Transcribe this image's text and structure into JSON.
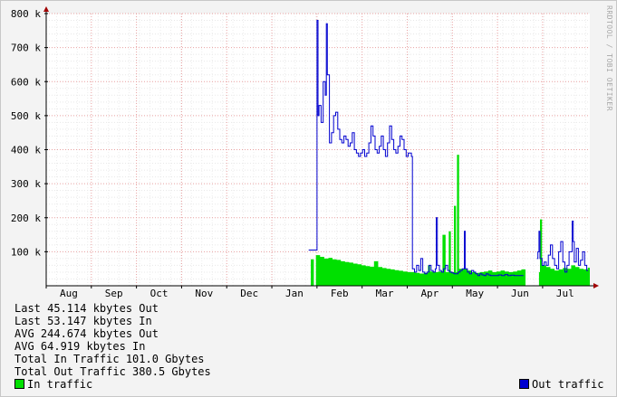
{
  "watermark": "RRDTOOL / TOBI OETIKER",
  "stats": [
    "Last 45.114 kbytes Out",
    "Last 53.147 kbytes In",
    "AVG 244.674 kbytes Out",
    "AVG 64.919 kbytes In",
    "Total In Traffic 101.0 Gbytes",
    "Total Out Traffic 380.5 Gbytes"
  ],
  "legend": {
    "in_label": "In traffic",
    "out_label": "Out traffic",
    "in_color": "#00e000",
    "out_color": "#0000d0"
  },
  "chart_data": {
    "type": "area",
    "x_unit": "week",
    "x_tick_labels": [
      "Aug",
      "Sep",
      "Oct",
      "Nov",
      "Dec",
      "Jan",
      "Feb",
      "Mar",
      "Apr",
      "May",
      "Jun",
      "Jul"
    ],
    "y_tick_labels": [
      "100 k",
      "200 k",
      "300 k",
      "400 k",
      "500 k",
      "600 k",
      "700 k",
      "800 k"
    ],
    "ylim": [
      0,
      800000
    ],
    "grid": true,
    "legend_position": "bottom",
    "series": [
      {
        "name": "In traffic",
        "color": "#00e000",
        "style": "area",
        "points": [
          [
            25.5,
            78000
          ],
          [
            25.8,
            0
          ],
          [
            26.0,
            90000
          ],
          [
            26.4,
            85000
          ],
          [
            26.8,
            80000
          ],
          [
            27.2,
            82000
          ],
          [
            27.6,
            78000
          ],
          [
            28.0,
            76000
          ],
          [
            28.4,
            72000
          ],
          [
            28.8,
            70000
          ],
          [
            29.2,
            68000
          ],
          [
            29.6,
            65000
          ],
          [
            30.0,
            63000
          ],
          [
            30.4,
            60000
          ],
          [
            30.8,
            58000
          ],
          [
            31.2,
            56000
          ],
          [
            31.6,
            72000
          ],
          [
            32.0,
            55000
          ],
          [
            32.4,
            52000
          ],
          [
            32.8,
            50000
          ],
          [
            33.2,
            48000
          ],
          [
            33.6,
            46000
          ],
          [
            34.0,
            44000
          ],
          [
            34.4,
            42000
          ],
          [
            34.8,
            40000
          ],
          [
            35.2,
            40000
          ],
          [
            35.6,
            38000
          ],
          [
            36.0,
            36000
          ],
          [
            36.4,
            38000
          ],
          [
            36.8,
            60000
          ],
          [
            37.0,
            42000
          ],
          [
            37.4,
            40000
          ],
          [
            37.8,
            42000
          ],
          [
            38.2,
            150000
          ],
          [
            38.5,
            40000
          ],
          [
            38.8,
            160000
          ],
          [
            39.0,
            40000
          ],
          [
            39.3,
            235000
          ],
          [
            39.5,
            40000
          ],
          [
            39.6,
            385000
          ],
          [
            39.8,
            50000
          ],
          [
            40.2,
            50000
          ],
          [
            40.6,
            45000
          ],
          [
            41.0,
            40000
          ],
          [
            41.4,
            38000
          ],
          [
            41.8,
            40000
          ],
          [
            42.2,
            42000
          ],
          [
            42.6,
            45000
          ],
          [
            43.0,
            40000
          ],
          [
            43.4,
            42000
          ],
          [
            43.8,
            45000
          ],
          [
            44.2,
            42000
          ],
          [
            44.6,
            40000
          ],
          [
            45.0,
            42000
          ],
          [
            45.4,
            45000
          ],
          [
            45.8,
            48000
          ],
          [
            46.2,
            0
          ],
          [
            47.2,
            0
          ],
          [
            47.5,
            40000
          ],
          [
            47.6,
            195000
          ],
          [
            47.8,
            60000
          ],
          [
            48.2,
            55000
          ],
          [
            48.6,
            50000
          ],
          [
            49.0,
            45000
          ],
          [
            49.4,
            48000
          ],
          [
            49.8,
            52000
          ],
          [
            50.2,
            50000
          ],
          [
            50.6,
            60000
          ],
          [
            51.0,
            55000
          ],
          [
            51.4,
            50000
          ],
          [
            51.8,
            48000
          ],
          [
            52.2,
            53147
          ]
        ]
      },
      {
        "name": "Out traffic",
        "color": "#0000d0",
        "style": "line",
        "points": [
          [
            25.3,
            105000
          ],
          [
            25.5,
            105000
          ],
          [
            26.1,
            780000
          ],
          [
            26.2,
            500000
          ],
          [
            26.3,
            530000
          ],
          [
            26.5,
            480000
          ],
          [
            26.7,
            600000
          ],
          [
            26.9,
            560000
          ],
          [
            27.0,
            770000
          ],
          [
            27.1,
            620000
          ],
          [
            27.3,
            420000
          ],
          [
            27.5,
            450000
          ],
          [
            27.7,
            500000
          ],
          [
            27.9,
            510000
          ],
          [
            28.1,
            460000
          ],
          [
            28.3,
            430000
          ],
          [
            28.5,
            420000
          ],
          [
            28.7,
            440000
          ],
          [
            28.9,
            430000
          ],
          [
            29.1,
            410000
          ],
          [
            29.3,
            420000
          ],
          [
            29.5,
            450000
          ],
          [
            29.7,
            400000
          ],
          [
            29.9,
            390000
          ],
          [
            30.1,
            380000
          ],
          [
            30.3,
            390000
          ],
          [
            30.5,
            400000
          ],
          [
            30.7,
            380000
          ],
          [
            30.9,
            390000
          ],
          [
            31.1,
            420000
          ],
          [
            31.3,
            470000
          ],
          [
            31.5,
            440000
          ],
          [
            31.7,
            400000
          ],
          [
            31.9,
            390000
          ],
          [
            32.1,
            410000
          ],
          [
            32.3,
            440000
          ],
          [
            32.5,
            400000
          ],
          [
            32.7,
            380000
          ],
          [
            32.9,
            420000
          ],
          [
            33.1,
            470000
          ],
          [
            33.3,
            430000
          ],
          [
            33.5,
            400000
          ],
          [
            33.7,
            390000
          ],
          [
            33.9,
            410000
          ],
          [
            34.1,
            440000
          ],
          [
            34.3,
            430000
          ],
          [
            34.5,
            400000
          ],
          [
            34.7,
            380000
          ],
          [
            34.9,
            390000
          ],
          [
            35.2,
            380000
          ],
          [
            35.3,
            50000
          ],
          [
            35.5,
            40000
          ],
          [
            35.7,
            60000
          ],
          [
            35.9,
            45000
          ],
          [
            36.1,
            80000
          ],
          [
            36.3,
            40000
          ],
          [
            36.5,
            35000
          ],
          [
            36.7,
            40000
          ],
          [
            36.9,
            60000
          ],
          [
            37.1,
            45000
          ],
          [
            37.3,
            40000
          ],
          [
            37.5,
            50000
          ],
          [
            37.6,
            200000
          ],
          [
            37.7,
            60000
          ],
          [
            37.9,
            45000
          ],
          [
            38.1,
            40000
          ],
          [
            38.3,
            50000
          ],
          [
            38.5,
            60000
          ],
          [
            38.7,
            45000
          ],
          [
            38.9,
            40000
          ],
          [
            39.1,
            38000
          ],
          [
            39.3,
            35000
          ],
          [
            39.5,
            35000
          ],
          [
            39.7,
            40000
          ],
          [
            39.9,
            45000
          ],
          [
            40.1,
            50000
          ],
          [
            40.3,
            160000
          ],
          [
            40.4,
            50000
          ],
          [
            40.6,
            40000
          ],
          [
            40.8,
            35000
          ],
          [
            41.0,
            45000
          ],
          [
            41.2,
            40000
          ],
          [
            41.4,
            35000
          ],
          [
            41.6,
            30000
          ],
          [
            41.8,
            35000
          ],
          [
            42.0,
            32000
          ],
          [
            42.2,
            30000
          ],
          [
            42.4,
            35000
          ],
          [
            42.6,
            32000
          ],
          [
            42.8,
            30000
          ],
          [
            43.0,
            30000
          ],
          [
            43.3,
            30000
          ],
          [
            43.6,
            32000
          ],
          [
            43.9,
            30000
          ],
          [
            44.2,
            33000
          ],
          [
            44.5,
            30000
          ],
          [
            44.8,
            31000
          ],
          [
            45.1,
            30000
          ],
          [
            45.4,
            30000
          ],
          [
            45.7,
            30000
          ],
          [
            46.0,
            30000
          ],
          [
            47.3,
            80000
          ],
          [
            47.4,
            100000
          ],
          [
            47.5,
            160000
          ],
          [
            47.6,
            80000
          ],
          [
            47.8,
            60000
          ],
          [
            48.0,
            70000
          ],
          [
            48.2,
            60000
          ],
          [
            48.4,
            90000
          ],
          [
            48.6,
            120000
          ],
          [
            48.8,
            80000
          ],
          [
            49.0,
            60000
          ],
          [
            49.2,
            50000
          ],
          [
            49.4,
            100000
          ],
          [
            49.6,
            130000
          ],
          [
            49.8,
            70000
          ],
          [
            50.0,
            40000
          ],
          [
            50.2,
            60000
          ],
          [
            50.4,
            100000
          ],
          [
            50.5,
            100000
          ],
          [
            50.7,
            190000
          ],
          [
            50.8,
            130000
          ],
          [
            50.9,
            70000
          ],
          [
            51.1,
            110000
          ],
          [
            51.3,
            60000
          ],
          [
            51.5,
            75000
          ],
          [
            51.7,
            100000
          ],
          [
            51.9,
            60000
          ],
          [
            52.1,
            45000
          ],
          [
            52.2,
            45114
          ]
        ]
      }
    ]
  }
}
